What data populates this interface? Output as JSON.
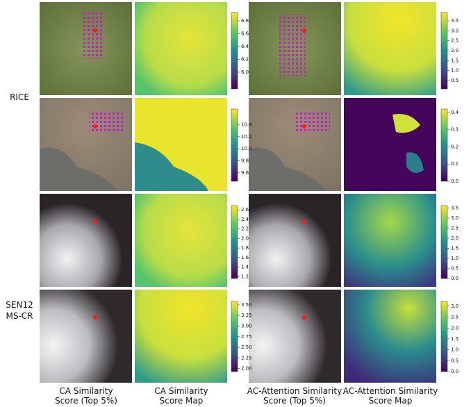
{
  "row_groups": [
    {
      "label": [
        "RICE"
      ]
    },
    {
      "label": [
        "SEN12",
        "MS-CR"
      ]
    }
  ],
  "columns": [
    [
      "CA Similarity",
      "Score (Top 5%)"
    ],
    [
      "CA Similarity",
      "Score Map"
    ],
    [
      "AC-Attention Similarity",
      "Score (Top 5%)"
    ],
    [
      "AC-Attention Similarity",
      "Score Map"
    ]
  ],
  "colorbars": [
    {
      "lim": [
        5.74,
        6.93
      ],
      "ticks": [
        {
          "value": 6,
          "label": "6.0"
        },
        6.2,
        6.4,
        6.6,
        6.8
      ]
    },
    {
      "lim": [
        0.08,
        3.92
      ],
      "ticks": [
        0.5,
        {
          "value": 1,
          "label": "1.0"
        },
        1.5,
        {
          "value": 2,
          "label": "2.0"
        },
        2.5,
        {
          "value": 3,
          "label": "3.0"
        },
        3.5
      ]
    },
    {
      "lim": [
        9.46,
        10.66
      ],
      "ticks": [
        9.6,
        9.8,
        {
          "value": 10,
          "label": "10.0"
        },
        10.2,
        10.4
      ]
    },
    {
      "lim": [
        0,
        0.42
      ],
      "ticks": [
        {
          "value": 0,
          "label": "0.0"
        },
        0.1,
        0.2,
        0.3,
        0.4
      ]
    },
    {
      "lim": [
        1.16,
        2.69
      ],
      "ticks": [
        1.2,
        1.4,
        1.6,
        1.8,
        {
          "value": 2,
          "label": "2.0"
        },
        2.2,
        2.4,
        2.6
      ]
    },
    {
      "lim": [
        0,
        3.62
      ],
      "ticks": [
        {
          "value": 0,
          "label": "0.0"
        },
        0.5,
        {
          "value": 1,
          "label": "1.0"
        },
        1.5,
        {
          "value": 2,
          "label": "2.0"
        },
        2.5,
        {
          "value": 3,
          "label": "3.0"
        },
        3.5
      ]
    },
    {
      "lim": [
        1.93,
        3.58
      ],
      "ticks": [
        {
          "value": 2,
          "label": "2.00"
        },
        2.25,
        {
          "value": 2.5,
          "label": "2.50"
        },
        2.75,
        {
          "value": 3,
          "label": "3.00"
        },
        3.25,
        {
          "value": 3.5,
          "label": "3.50"
        }
      ]
    },
    {
      "lim": [
        0,
        3.22
      ],
      "ticks": [
        {
          "value": 0,
          "label": "0.0"
        },
        0.5,
        {
          "value": 1,
          "label": "1.0"
        },
        1.5,
        {
          "value": 2,
          "label": "2.0"
        },
        2.5,
        {
          "value": 3,
          "label": "3.0"
        }
      ]
    }
  ]
}
